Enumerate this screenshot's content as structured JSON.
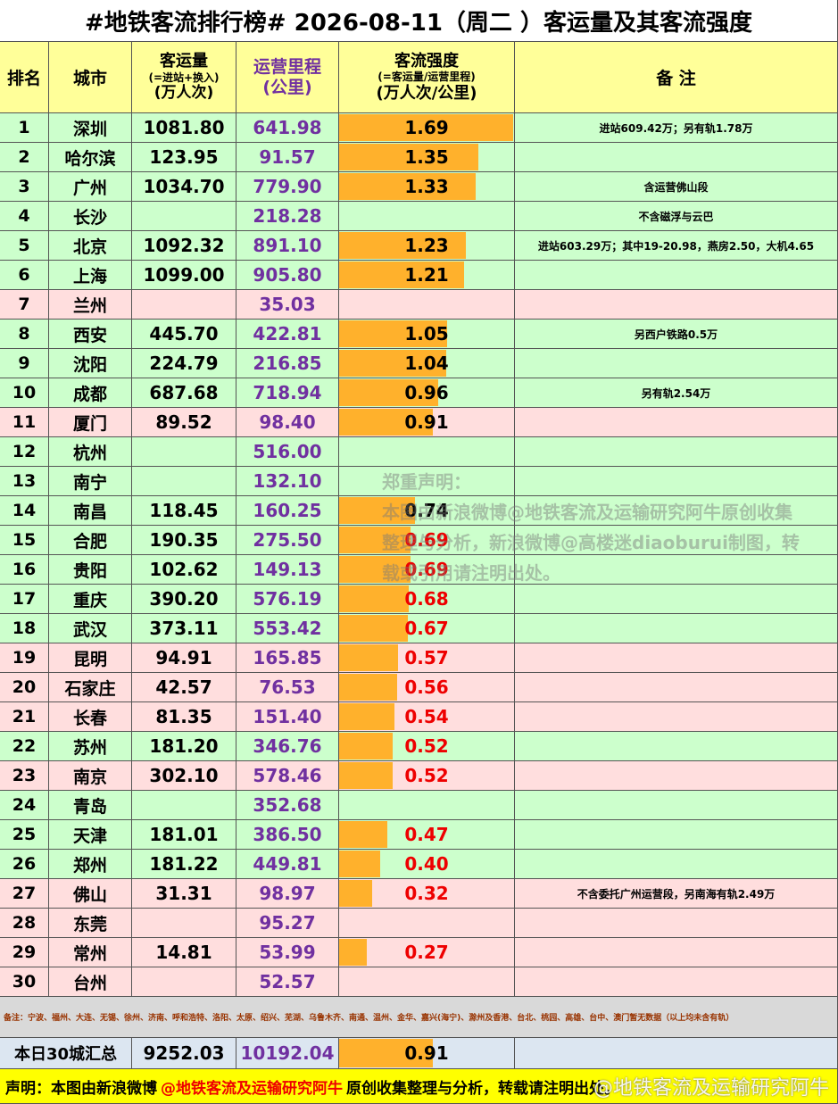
{
  "header": {
    "title": "#地铁客流排行榜# 2026-08-11（周二 ）客运量及其客流强度",
    "columns": {
      "rank": "排名",
      "city": "城市",
      "ridership": [
        "客运量",
        "(=进站+换入)",
        "(万人次)"
      ],
      "length": [
        "运营里程",
        "(公里)"
      ],
      "intensity": [
        "客流强度",
        "(=客运量/运营里程)",
        "(万人次/公里)"
      ],
      "note": "备 注"
    }
  },
  "table": {
    "rows": [
      {
        "rank": "1",
        "city": "深圳",
        "ridership": "1081.80",
        "length": "641.98",
        "intensity": "1.69",
        "note": "进站609.42万；另有轨1.78万",
        "bg": "#ccffcc",
        "ink": "#000000"
      },
      {
        "rank": "2",
        "city": "哈尔滨",
        "ridership": "123.95",
        "length": "91.57",
        "intensity": "1.35",
        "note": null,
        "bg": "#ccffcc",
        "ink": "#000000"
      },
      {
        "rank": "3",
        "city": "广州",
        "ridership": "1034.70",
        "length": "779.90",
        "intensity": "1.33",
        "note": "含运营佛山段",
        "bg": "#ccffcc",
        "ink": "#000000"
      },
      {
        "rank": "4",
        "city": "长沙",
        "ridership": null,
        "length": "218.28",
        "intensity": null,
        "note": "不含磁浮与云巴",
        "bg": "#ccffcc",
        "ink": "#000000"
      },
      {
        "rank": "5",
        "city": "北京",
        "ridership": "1092.32",
        "length": "891.10",
        "intensity": "1.23",
        "note": "进站603.29万；其中19-20.98，燕房2.50，大机4.65",
        "bg": "#ccffcc",
        "ink": "#000000"
      },
      {
        "rank": "6",
        "city": "上海",
        "ridership": "1099.00",
        "length": "905.80",
        "intensity": "1.21",
        "note": null,
        "bg": "#ccffcc",
        "ink": "#000000"
      },
      {
        "rank": "7",
        "city": "兰州",
        "ridership": null,
        "length": "35.03",
        "intensity": null,
        "note": null,
        "bg": "#ffdede",
        "ink": "#000000"
      },
      {
        "rank": "8",
        "city": "西安",
        "ridership": "445.70",
        "length": "422.81",
        "intensity": "1.05",
        "note": "另西户铁路0.5万",
        "bg": "#ccffcc",
        "ink": "#000000"
      },
      {
        "rank": "9",
        "city": "沈阳",
        "ridership": "224.79",
        "length": "216.85",
        "intensity": "1.04",
        "note": null,
        "bg": "#ccffcc",
        "ink": "#000000"
      },
      {
        "rank": "10",
        "city": "成都",
        "ridership": "687.68",
        "length": "718.94",
        "intensity": "0.96",
        "note": "另有轨2.54万",
        "bg": "#ccffcc",
        "ink": "#000000"
      },
      {
        "rank": "11",
        "city": "厦门",
        "ridership": "89.52",
        "length": "98.40",
        "intensity": "0.91",
        "note": null,
        "bg": "#ffdede",
        "ink": "#000000"
      },
      {
        "rank": "12",
        "city": "杭州",
        "ridership": null,
        "length": "516.00",
        "intensity": null,
        "note": null,
        "bg": "#ccffcc",
        "ink": "#000000"
      },
      {
        "rank": "13",
        "city": "南宁",
        "ridership": null,
        "length": "132.10",
        "intensity": null,
        "note": null,
        "bg": "#ccffcc",
        "ink": "#000000"
      },
      {
        "rank": "14",
        "city": "南昌",
        "ridership": "118.45",
        "length": "160.25",
        "intensity": "0.74",
        "note": null,
        "bg": "#ccffcc",
        "ink": "#000000"
      },
      {
        "rank": "15",
        "city": "合肥",
        "ridership": "190.35",
        "length": "275.50",
        "intensity": "0.69",
        "note": null,
        "bg": "#ccffcc",
        "ink": "#ee0000"
      },
      {
        "rank": "16",
        "city": "贵阳",
        "ridership": "102.62",
        "length": "149.13",
        "intensity": "0.69",
        "note": null,
        "bg": "#ccffcc",
        "ink": "#ee0000"
      },
      {
        "rank": "17",
        "city": "重庆",
        "ridership": "390.20",
        "length": "576.19",
        "intensity": "0.68",
        "note": null,
        "bg": "#ccffcc",
        "ink": "#ee0000"
      },
      {
        "rank": "18",
        "city": "武汉",
        "ridership": "373.11",
        "length": "553.42",
        "intensity": "0.67",
        "note": null,
        "bg": "#ccffcc",
        "ink": "#ee0000"
      },
      {
        "rank": "19",
        "city": "昆明",
        "ridership": "94.91",
        "length": "165.85",
        "intensity": "0.57",
        "note": null,
        "bg": "#ffdede",
        "ink": "#ee0000"
      },
      {
        "rank": "20",
        "city": "石家庄",
        "ridership": "42.57",
        "length": "76.53",
        "intensity": "0.56",
        "note": null,
        "bg": "#ffdede",
        "ink": "#ee0000"
      },
      {
        "rank": "21",
        "city": "长春",
        "ridership": "81.35",
        "length": "151.40",
        "intensity": "0.54",
        "note": null,
        "bg": "#ffdede",
        "ink": "#ee0000"
      },
      {
        "rank": "22",
        "city": "苏州",
        "ridership": "181.20",
        "length": "346.76",
        "intensity": "0.52",
        "note": null,
        "bg": "#ccffcc",
        "ink": "#ee0000"
      },
      {
        "rank": "23",
        "city": "南京",
        "ridership": "302.10",
        "length": "578.46",
        "intensity": "0.52",
        "note": null,
        "bg": "#ffdede",
        "ink": "#ee0000"
      },
      {
        "rank": "24",
        "city": "青岛",
        "ridership": null,
        "length": "352.68",
        "intensity": null,
        "note": null,
        "bg": "#ccffcc",
        "ink": "#000000"
      },
      {
        "rank": "25",
        "city": "天津",
        "ridership": "181.01",
        "length": "386.50",
        "intensity": "0.47",
        "note": null,
        "bg": "#ccffcc",
        "ink": "#ee0000"
      },
      {
        "rank": "26",
        "city": "郑州",
        "ridership": "181.22",
        "length": "449.81",
        "intensity": "0.40",
        "note": null,
        "bg": "#ccffcc",
        "ink": "#ee0000"
      },
      {
        "rank": "27",
        "city": "佛山",
        "ridership": "31.31",
        "length": "98.97",
        "intensity": "0.32",
        "note": "不含委托广州运营段，另南海有轨2.49万",
        "bg": "#ffdede",
        "ink": "#ee0000"
      },
      {
        "rank": "28",
        "city": "东莞",
        "ridership": null,
        "length": "95.27",
        "intensity": null,
        "note": null,
        "bg": "#ffdede",
        "ink": "#000000"
      },
      {
        "rank": "29",
        "city": "常州",
        "ridership": "14.81",
        "length": "53.99",
        "intensity": "0.27",
        "note": null,
        "bg": "#ffdede",
        "ink": "#ee0000"
      },
      {
        "rank": "30",
        "city": "台州",
        "ridership": null,
        "length": "52.57",
        "intensity": null,
        "note": null,
        "bg": "#ffdede",
        "ink": "#000000"
      }
    ],
    "footnote": "备注：宁波、福州、大连、无锡、徐州、济南、呼和浩特、洛阳、太原、绍兴、芜湖、乌鲁木齐、南通、温州、金华、嘉兴(海宁)、滁州及香港、台北、桃园、高雄、台中、澳门暂无数据（以上均未含有轨）",
    "total": {
      "label": "本日30城汇总",
      "ridership": "9252.03",
      "length": "10192.04",
      "intensity": "0.91"
    }
  },
  "footer": {
    "lead": "声明：本图由新浪微博",
    "account": "@地铁客流及运输研究阿牛",
    "tail": "原创收集整理与分析，转载请注明出处。"
  },
  "notice": {
    "title": "郑重声明：",
    "body": "本图由新浪微博@地铁客流及运输研究阿牛原创收集整理与分析，新浪微博@高楼迷diaoburui制图，转载或引用请注明出处。"
  },
  "watermark": "@地铁客流及运输研究阿牛"
}
